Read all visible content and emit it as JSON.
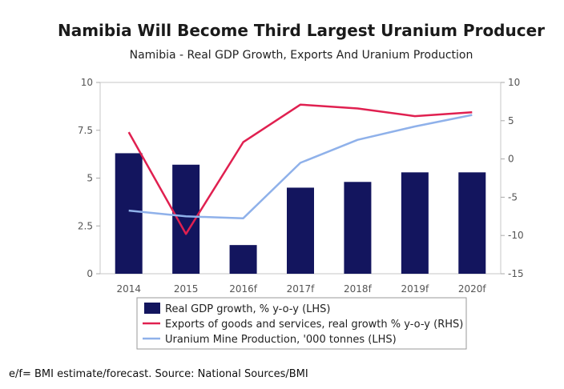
{
  "chart_data": {
    "type": "bar",
    "title": "Namibia Will Become Third Largest Uranium Producer",
    "subtitle": "Namibia - Real GDP Growth, Exports And Uranium Production",
    "categories": [
      "2014",
      "2015",
      "2016f",
      "2017f",
      "2018f",
      "2019f",
      "2020f"
    ],
    "left_axis": {
      "ylim": [
        0,
        10
      ],
      "ticks": [
        "0",
        "2.5",
        "5",
        "7.5",
        "10"
      ]
    },
    "right_axis": {
      "ylim": [
        -15,
        10
      ],
      "ticks": [
        "-15",
        "-10",
        "-5",
        "0",
        "5",
        "10"
      ]
    },
    "series": [
      {
        "name": "Real GDP growth, % y-o-y (LHS)",
        "type": "bar",
        "axis": "left",
        "color": "#13155e",
        "values": [
          6.3,
          5.7,
          1.5,
          4.5,
          4.8,
          5.3,
          5.3
        ]
      },
      {
        "name": "Exports of goods and services, real growth % y-o-y (RHS)",
        "type": "line",
        "axis": "right",
        "color": "#e02050",
        "values": [
          3.5,
          -9.8,
          2.2,
          7.1,
          6.6,
          5.6,
          6.1
        ]
      },
      {
        "name": "Uranium Mine Production, '000 tonnes (LHS)",
        "type": "line",
        "axis": "left",
        "color": "#8fb1ea",
        "values": [
          3.3,
          3.0,
          2.9,
          5.8,
          7.0,
          7.7,
          8.3
        ]
      }
    ]
  },
  "footnote": "e/f= BMI estimate/forecast. Source: National Sources/BMI"
}
